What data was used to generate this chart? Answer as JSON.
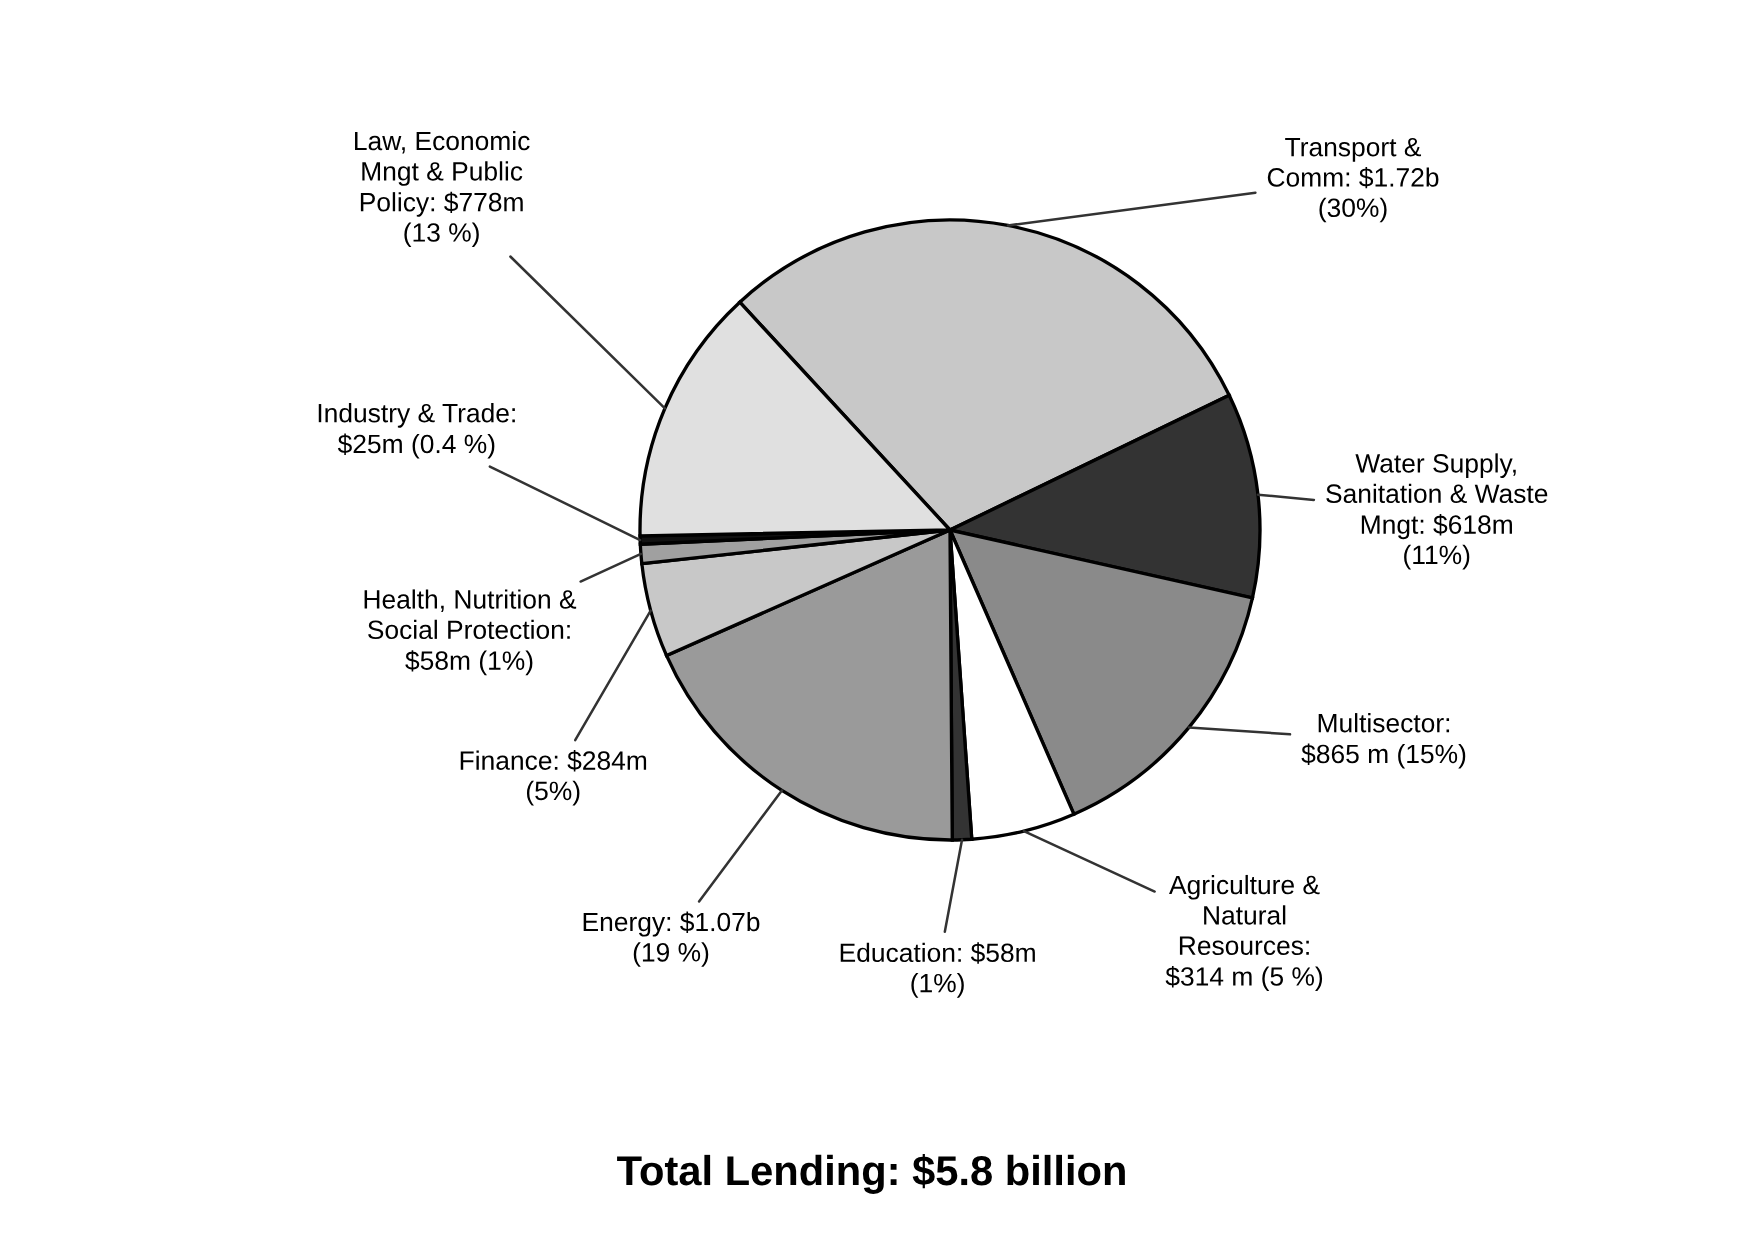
{
  "chart_data": {
    "type": "pie",
    "title": "Total Lending: $5.8 billion",
    "categories": [
      "Transport &\nComm: $1.72b\n(30%)",
      "Water Supply,\nSanitation & Waste\nMngt: $618m\n(11%)",
      "Multisector:\n$865 m (15%)",
      "Agriculture &\nNatural\nResources:\n$314 m (5 %)",
      "Education: $58m\n(1%)",
      "Energy: $1.07b\n(19 %)",
      "Finance: $284m\n(5%)",
      "Health, Nutrition &\nSocial Protection:\n$58m (1%)",
      "Industry & Trade:\n$25m (0.4 %)",
      "Law, Economic\nMngt & Public\nPolicy: $778m\n(13 %)"
    ],
    "values": [
      1720,
      618,
      865,
      314,
      58,
      1070,
      284,
      58,
      25,
      778
    ],
    "colors": [
      "#c8c8c8",
      "#333333",
      "#8a8a8a",
      "#ffffff",
      "#333333",
      "#9a9a9a",
      "#c8c8c8",
      "#a0a0a0",
      "#111111",
      "#e0e0e0"
    ]
  }
}
